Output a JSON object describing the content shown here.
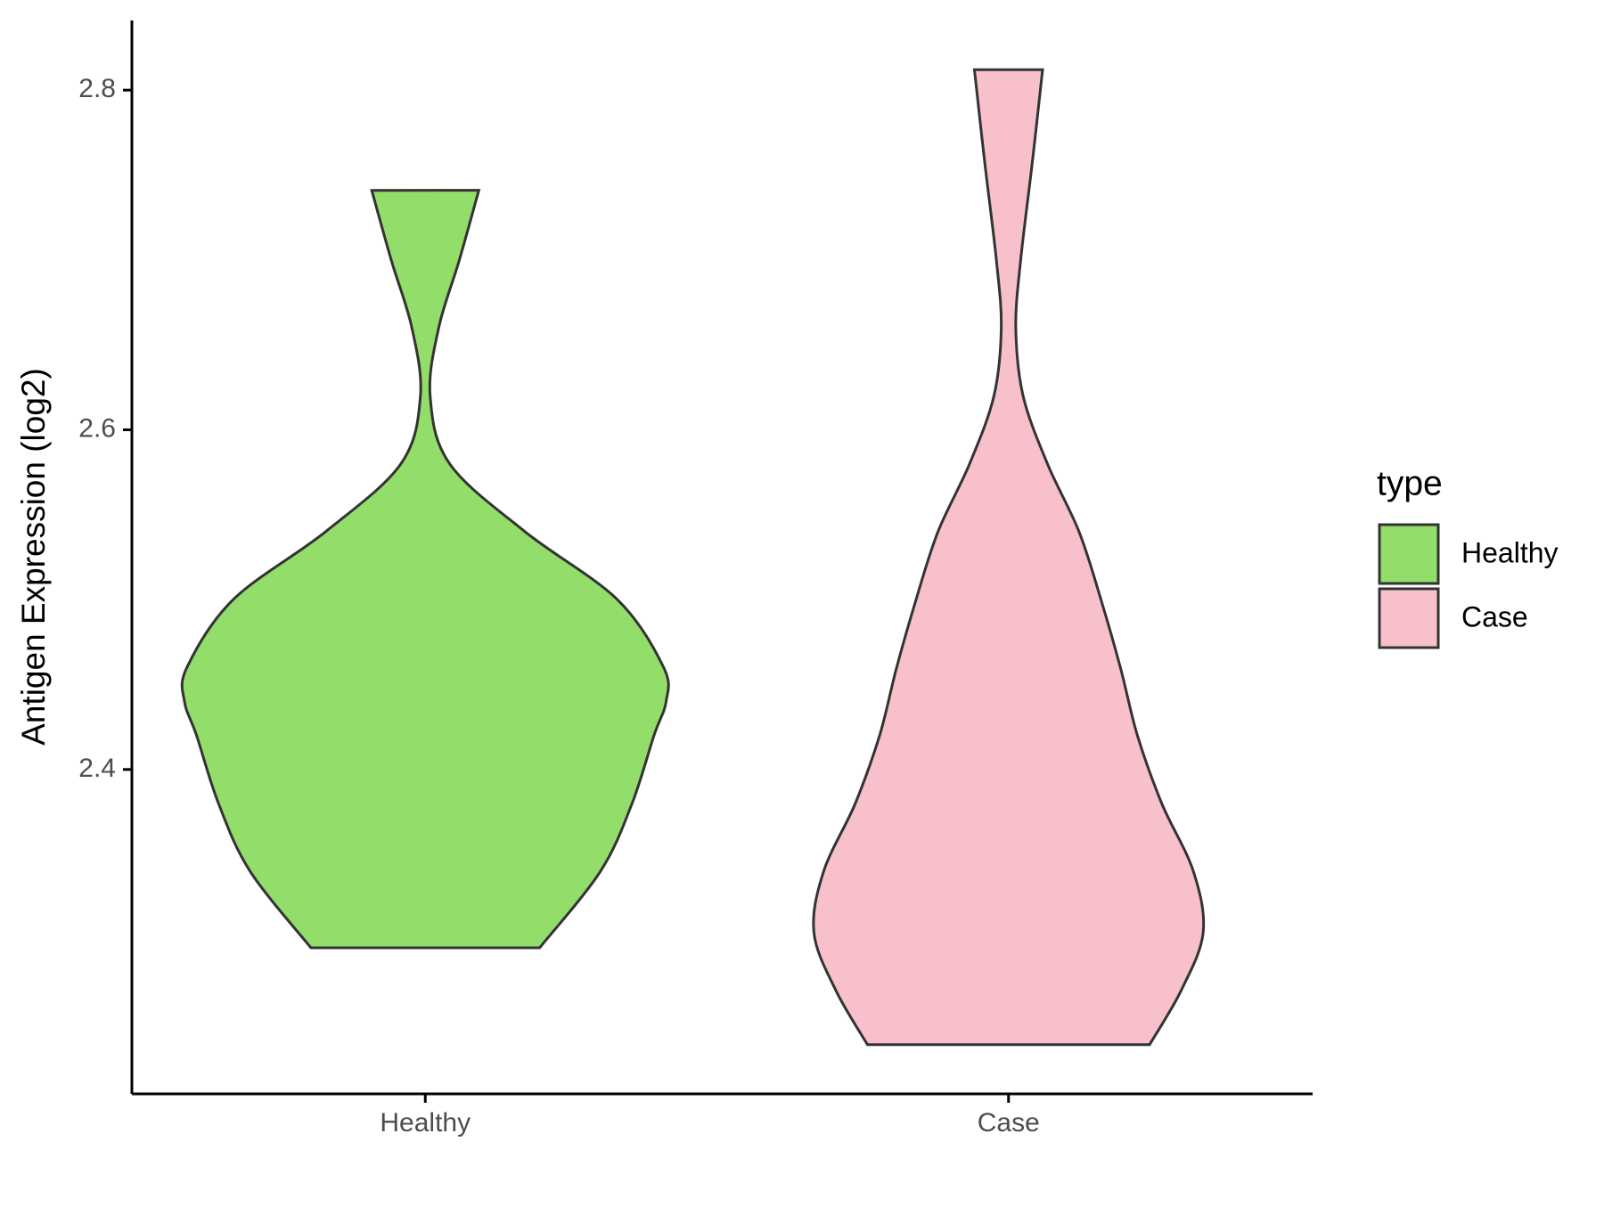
{
  "chart_data": {
    "type": "violin",
    "y_label": "Antigen Expression (log2)",
    "categories": [
      "Healthy",
      "Case"
    ],
    "legend_title": "type",
    "legend_position": "right",
    "ylim": [
      2.209,
      2.841
    ],
    "yticks": [
      2.4,
      2.6,
      2.8
    ],
    "grid": false,
    "series": [
      {
        "name": "Healthy",
        "color": "#93dd6a",
        "y": [
          2.741,
          2.7,
          2.66,
          2.62,
          2.58,
          2.54,
          2.5,
          2.46,
          2.44,
          2.42,
          2.38,
          2.34,
          2.295
        ],
        "density": [
          0.22,
          0.14,
          0.055,
          0.02,
          0.1,
          0.41,
          0.79,
          0.98,
          0.99,
          0.94,
          0.85,
          0.72,
          0.47
        ]
      },
      {
        "name": "Case",
        "color": "#f7c0cb",
        "y": [
          2.812,
          2.76,
          2.7,
          2.66,
          2.62,
          2.58,
          2.54,
          2.5,
          2.46,
          2.42,
          2.38,
          2.34,
          2.304,
          2.27,
          2.238
        ],
        "density": [
          0.14,
          0.1,
          0.05,
          0.03,
          0.06,
          0.16,
          0.29,
          0.38,
          0.46,
          0.53,
          0.63,
          0.76,
          0.8,
          0.71,
          0.58
        ]
      }
    ]
  }
}
